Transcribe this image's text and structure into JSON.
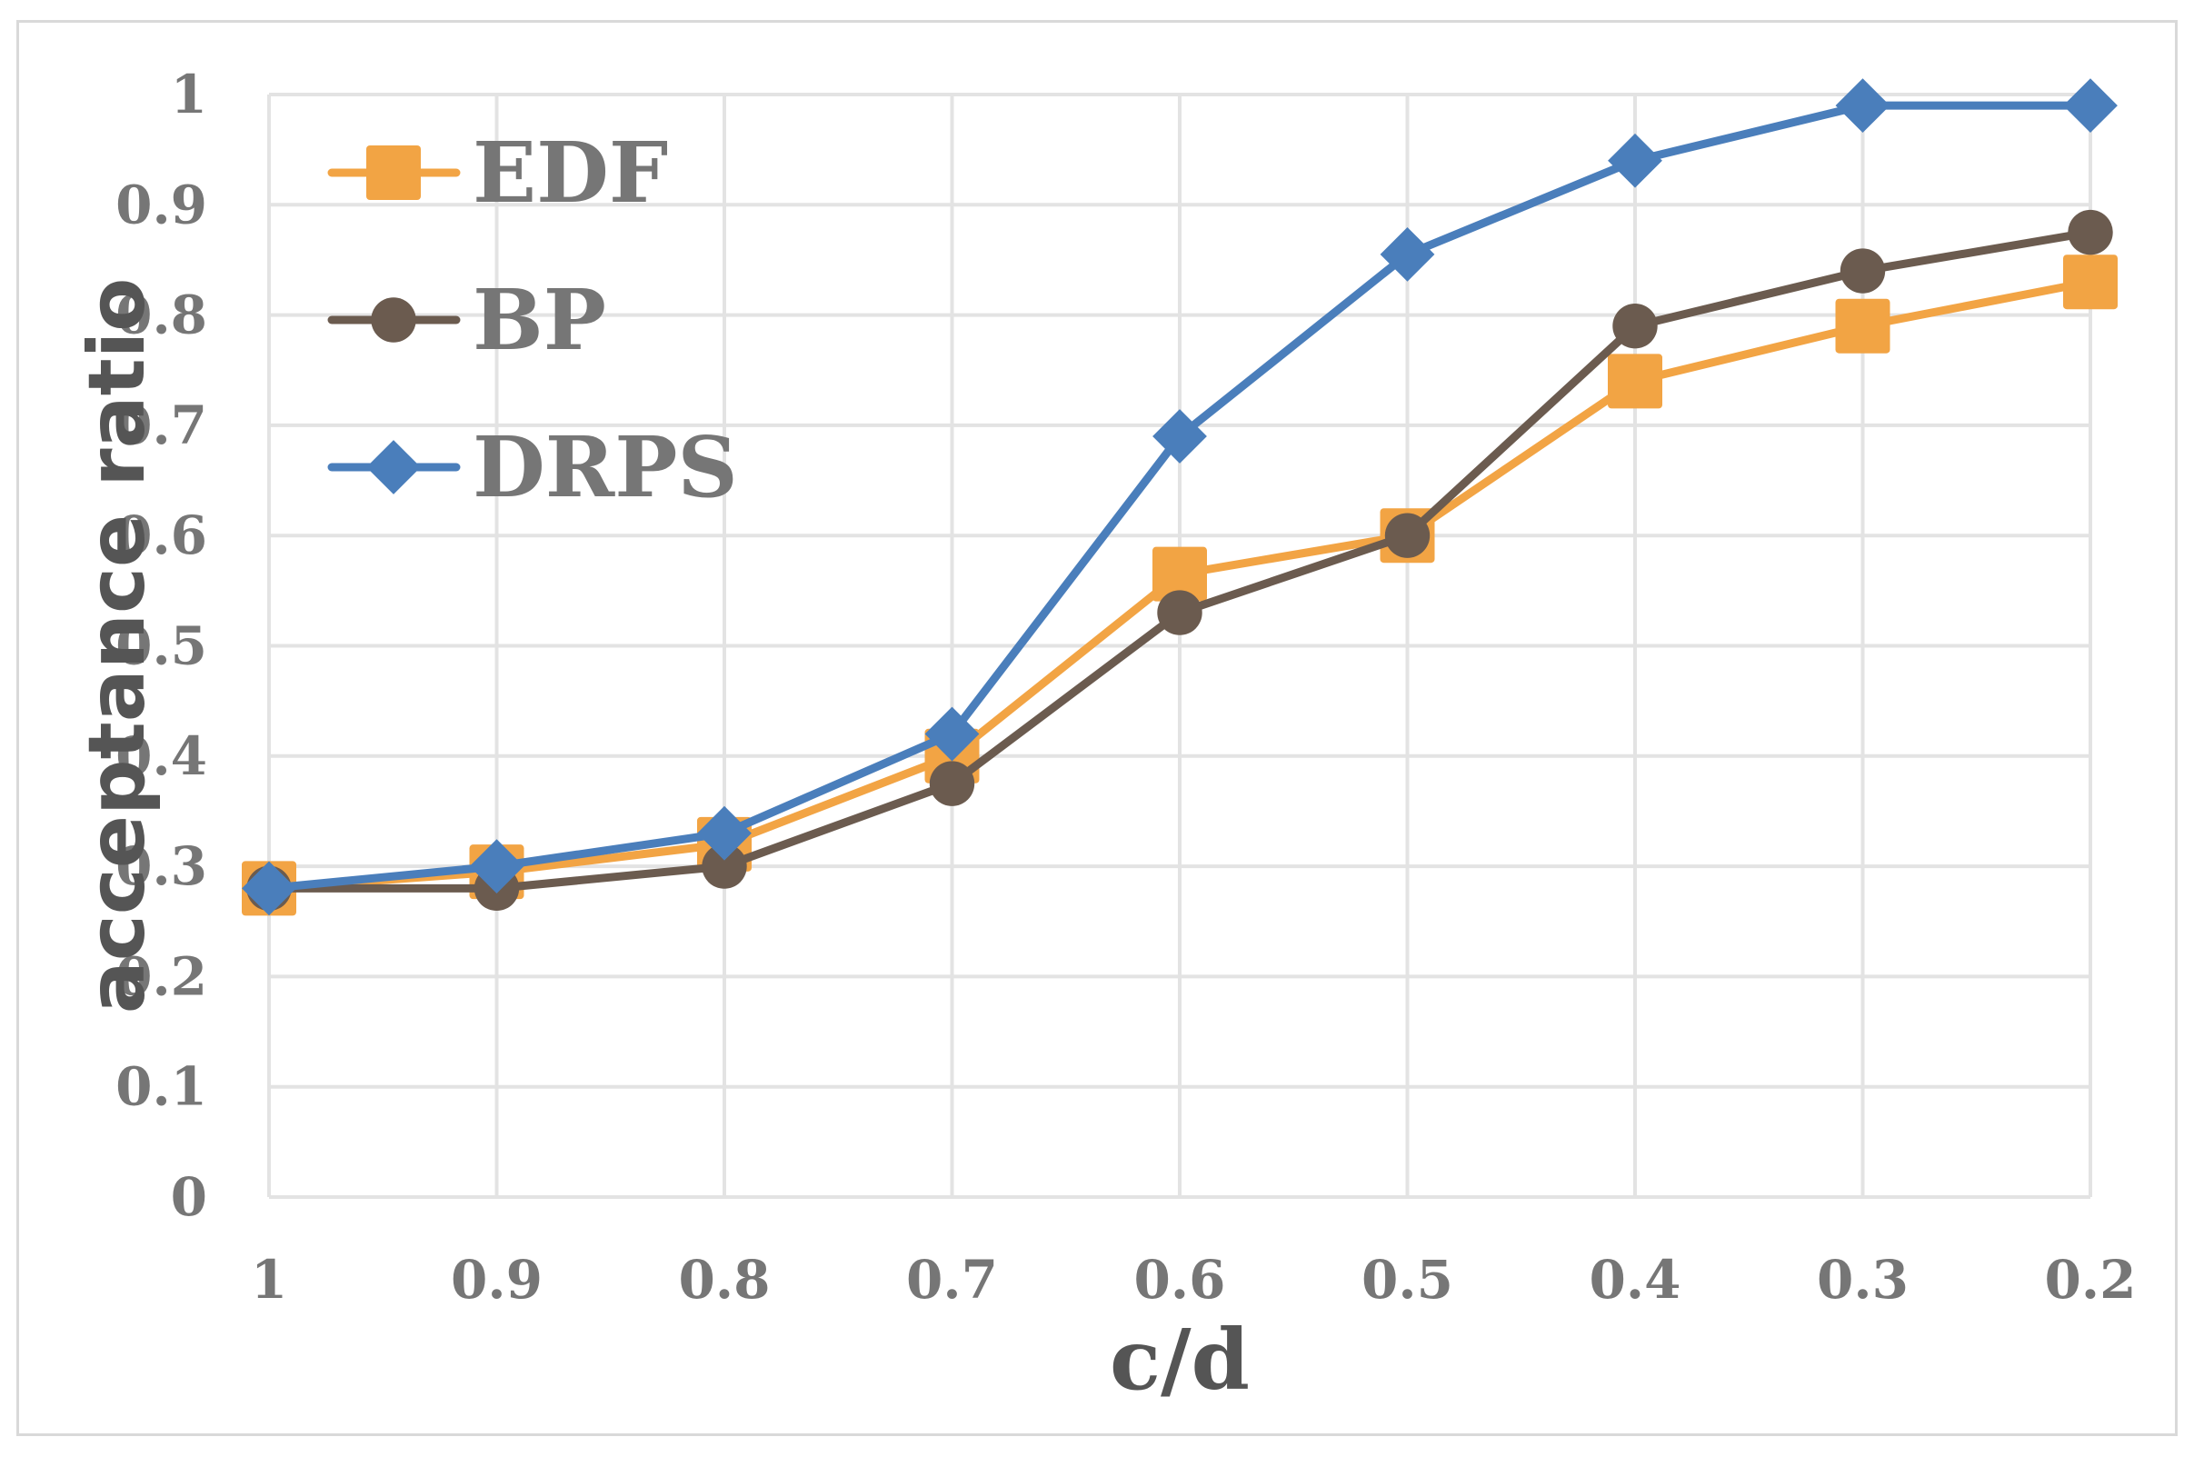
{
  "chart_data": {
    "type": "line",
    "categories": [
      "1",
      "0.9",
      "0.8",
      "0.7",
      "0.6",
      "0.5",
      "0.4",
      "0.3",
      "0.2"
    ],
    "xlabel": "c/d",
    "ylabel": "acceptance ratio",
    "ylim": [
      0,
      1
    ],
    "yticks": [
      "0",
      "0.1",
      "0.2",
      "0.3",
      "0.4",
      "0.5",
      "0.6",
      "0.7",
      "0.8",
      "0.9",
      "1"
    ],
    "grid": true,
    "legend_position": "top-left",
    "series": [
      {
        "name": "EDF",
        "color": "#f2a444",
        "marker": "square",
        "values": [
          0.28,
          0.295,
          0.32,
          0.4,
          0.565,
          0.6,
          0.74,
          0.79,
          0.83
        ]
      },
      {
        "name": "BP",
        "color": "#6b5b4f",
        "marker": "circle",
        "values": [
          0.28,
          0.28,
          0.3,
          0.375,
          0.53,
          0.6,
          0.79,
          0.84,
          0.875
        ]
      },
      {
        "name": "DRPS",
        "color": "#4a7ebb",
        "marker": "diamond",
        "values": [
          0.28,
          0.3,
          0.33,
          0.42,
          0.69,
          0.855,
          0.94,
          0.99,
          0.99
        ]
      }
    ]
  }
}
